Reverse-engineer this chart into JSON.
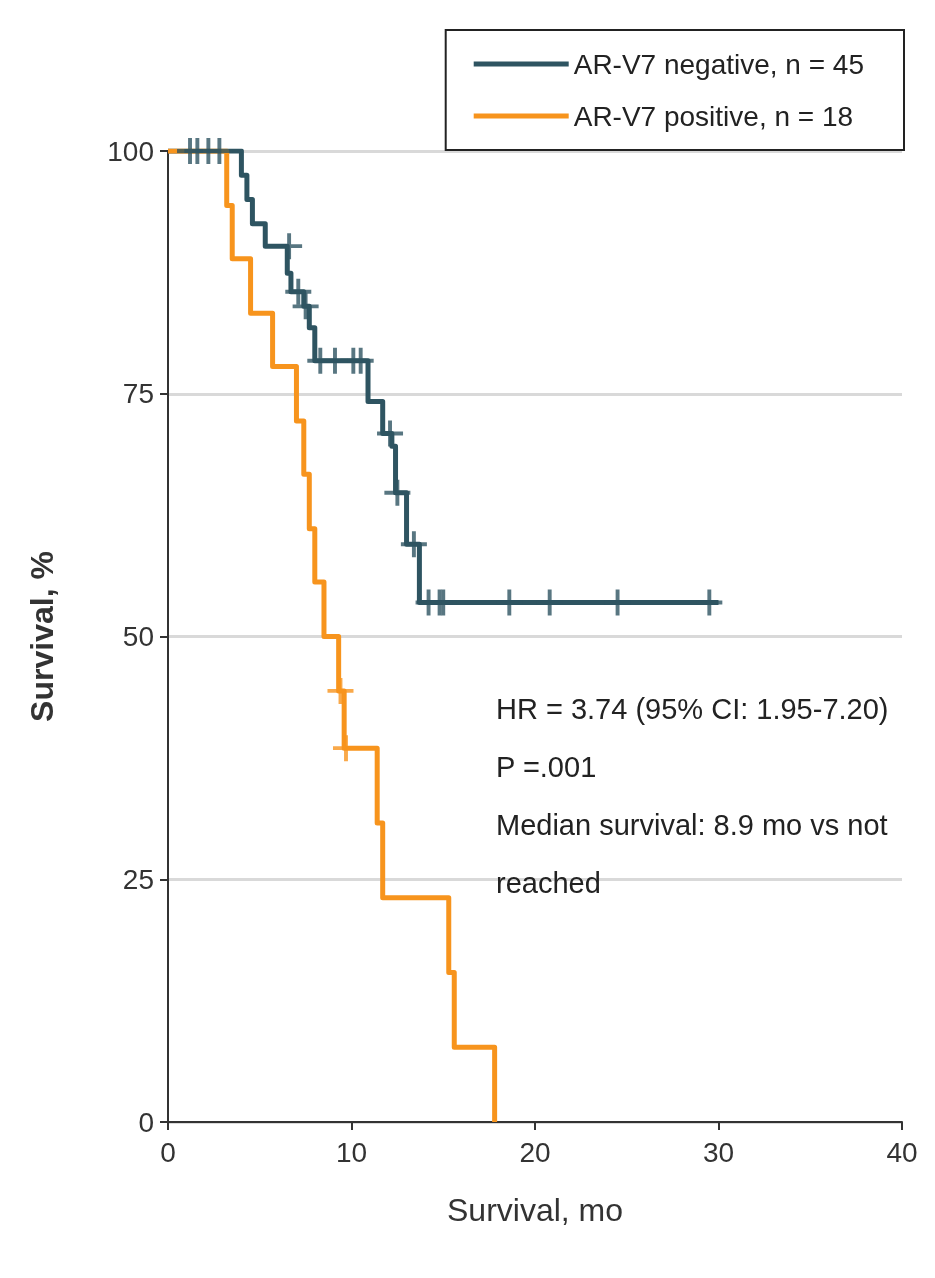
{
  "chart_data": {
    "type": "step",
    "xlabel": "Survival, mo",
    "ylabel": "Survival, %",
    "xlim": [
      0,
      40
    ],
    "xticks": [
      0,
      10,
      20,
      30,
      40
    ],
    "ylim": [
      0,
      100
    ],
    "yticks": [
      0,
      25,
      50,
      75,
      100
    ],
    "grid": "y",
    "legend": "top right",
    "line_style": "solid",
    "series": [
      {
        "name": "AR-V7 negative, n = 45",
        "color": "#2e5461",
        "x": [
          0,
          4.0,
          4.3,
          4.6,
          5.3,
          6.5,
          6.7,
          7.4,
          7.7,
          8.0,
          10.9,
          11.7,
          12.2,
          12.4,
          13.0,
          13.7,
          30.0
        ],
        "values": [
          100,
          97.5,
          95.0,
          92.5,
          90.2,
          87.4,
          85.5,
          84.0,
          81.8,
          78.4,
          74.2,
          70.9,
          69.6,
          64.8,
          59.5,
          53.5,
          53.5
        ]
      },
      {
        "name": "AR-V7 positive, n = 18",
        "color": "#f7941d",
        "x": [
          0,
          3.2,
          3.5,
          4.5,
          5.7,
          7.0,
          7.4,
          7.7,
          8.0,
          8.5,
          9.3,
          9.6,
          11.4,
          11.7,
          15.3,
          15.6,
          17.8
        ],
        "values": [
          100,
          94.4,
          88.9,
          83.3,
          77.8,
          72.2,
          66.7,
          61.1,
          55.6,
          50.0,
          44.4,
          38.5,
          30.8,
          23.1,
          15.4,
          7.7,
          0
        ]
      },
      {
        "color": "#2e5461",
        "type": "scatter",
        "marker": "cross",
        "x": [
          1.2,
          1.6,
          2.2,
          2.8,
          6.6,
          7.1,
          7.5,
          8.3,
          9.1,
          10.1,
          10.5,
          12.1,
          12.5,
          13.4,
          14.2,
          14.8,
          15.0,
          18.6,
          20.8,
          24.5,
          29.5
        ],
        "values": [
          100,
          100,
          100,
          100,
          90.2,
          85.5,
          84.0,
          78.4,
          78.4,
          78.4,
          78.4,
          70.9,
          64.8,
          59.5,
          53.5,
          53.5,
          53.5,
          53.5,
          53.5,
          53.5,
          53.5
        ]
      },
      {
        "color": "#f7941d",
        "type": "scatter",
        "marker": "cross",
        "x": [
          9.4,
          9.7
        ],
        "values": [
          44.4,
          38.5
        ]
      }
    ],
    "annotations": [
      "HR = 3.74 (95% CI: 1.95-7.20)",
      "P =.001",
      "Median survival: 8.9 mo vs not reached"
    ]
  }
}
